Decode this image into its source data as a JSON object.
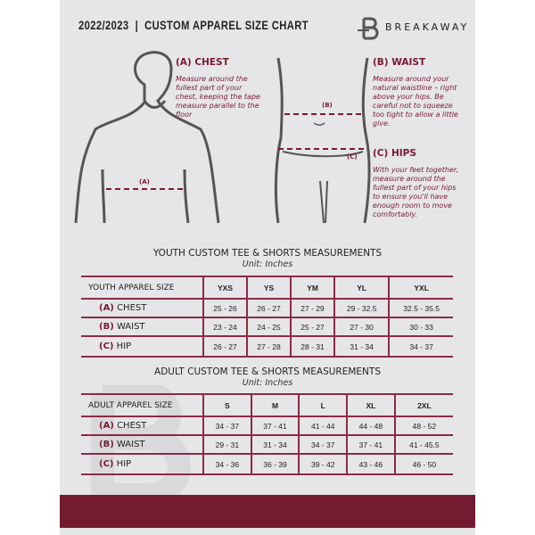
{
  "header": {
    "title": "2022/2023  |  CUSTOM APPAREL SIZE CHART",
    "brand": "BREAKAWAY"
  },
  "guides": {
    "chest": {
      "heading": "(A) CHEST",
      "text": "Measure around the fullest part of your chest, keeping the tape measure parallel to the floor",
      "marker": "(A)"
    },
    "waist": {
      "heading": "(B) WAIST",
      "text": "Measure around your natural waistline – right above your hips. Be careful not to squeeze too tight to allow a little give.",
      "marker": "(B)"
    },
    "hips": {
      "heading": "(C) HIPS",
      "text": "With your feet together, measure around the fullest part of your hips to ensure you'll have enough room to move comfortably.",
      "marker": "(C)"
    }
  },
  "youth": {
    "title": "YOUTH CUSTOM TEE & SHORTS MEASUREMENTS",
    "unit": "Unit: Inches",
    "header": [
      "YOUTH APPAREL SIZE",
      "YXS",
      "YS",
      "YM",
      "YL",
      "YXL"
    ],
    "rows": [
      {
        "letter": "(A)",
        "label": "CHEST",
        "values": [
          "25 - 26",
          "26 - 27",
          "27 - 29",
          "29 - 32.5",
          "32.5 - 35.5"
        ]
      },
      {
        "letter": "(B)",
        "label": "WAIST",
        "values": [
          "23 - 24",
          "24 - 25",
          "25 - 27",
          "27 - 30",
          "30 - 33"
        ]
      },
      {
        "letter": "(C)",
        "label": "HIP",
        "values": [
          "26 - 27",
          "27 - 28",
          "28 - 31",
          "31 - 34",
          "34 - 37"
        ]
      }
    ]
  },
  "adult": {
    "title": "ADULT CUSTOM TEE & SHORTS MEASUREMENTS",
    "unit": "Unit: Inches",
    "header": [
      "ADULT APPAREL SIZE",
      "S",
      "M",
      "L",
      "XL",
      "2XL"
    ],
    "rows": [
      {
        "letter": "(A)",
        "label": "CHEST",
        "values": [
          "34 - 37",
          "37 - 41",
          "41 - 44",
          "44 - 48",
          "48 - 52"
        ]
      },
      {
        "letter": "(B)",
        "label": "WAIST",
        "values": [
          "29 - 31",
          "31 - 34",
          "34 - 37",
          "37 - 41",
          "41 - 45.5"
        ]
      },
      {
        "letter": "(C)",
        "label": "HIP",
        "values": [
          "34 - 36",
          "36 - 39",
          "39 - 42",
          "43 - 46",
          "46 - 50"
        ]
      }
    ]
  },
  "colors": {
    "accent": "#7a1a30",
    "band": "#731b31",
    "background": "#e6e6e8"
  }
}
